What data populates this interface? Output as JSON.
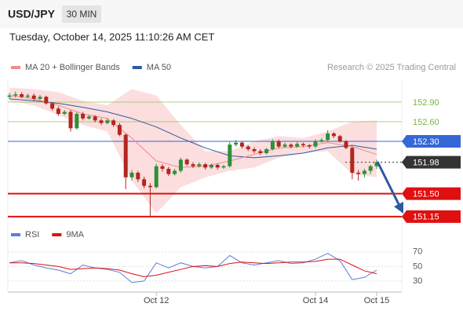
{
  "header": {
    "symbol": "USD/JPY",
    "interval": "30 MIN",
    "timestamp": "Tuesday, October 14, 2025 11:10:26 AM CET"
  },
  "chart_data": [
    {
      "type": "candlestick",
      "legend": [
        {
          "name": "MA 20 + Bollinger Bands",
          "color": "#f28a8a"
        },
        {
          "name": "MA 50",
          "color": "#2b5aa8"
        }
      ],
      "credit": "Research © 2025 Trading Central",
      "ylim": [
        151.04,
        153.26
      ],
      "up_color": "#2f8f3a",
      "down_color": "#b3261e",
      "xticks": [
        {
          "value": 24,
          "label": "Oct 12"
        },
        {
          "value": 50,
          "label": "Oct 14"
        },
        {
          "value": 60,
          "label": "Oct 15"
        }
      ],
      "open": [
        152.98,
        153.0,
        153.02,
        152.98,
        153.0,
        152.95,
        152.98,
        152.88,
        152.8,
        152.72,
        152.75,
        152.5,
        152.72,
        152.65,
        152.68,
        152.62,
        152.58,
        152.62,
        152.55,
        152.4,
        151.75,
        151.82,
        151.72,
        151.62,
        151.6,
        151.92,
        151.88,
        151.8,
        151.85,
        152.02,
        151.95,
        151.92,
        151.95,
        151.9,
        151.94,
        151.9,
        151.92,
        152.25,
        152.28,
        152.22,
        152.18,
        152.15,
        152.12,
        152.18,
        152.3,
        152.22,
        152.25,
        152.22,
        152.26,
        152.24,
        152.22,
        152.3,
        152.32,
        152.42,
        152.38,
        152.3,
        152.2,
        151.82,
        151.8,
        151.85,
        151.92
      ],
      "high": [
        153.04,
        153.06,
        153.05,
        153.03,
        153.03,
        153.01,
        153.0,
        152.9,
        152.83,
        152.78,
        152.78,
        152.75,
        152.75,
        152.7,
        152.7,
        152.65,
        152.65,
        152.64,
        152.58,
        152.42,
        151.86,
        151.85,
        151.76,
        151.66,
        151.96,
        151.95,
        151.91,
        151.88,
        152.05,
        152.04,
        151.98,
        151.98,
        151.97,
        151.96,
        151.96,
        151.94,
        152.29,
        152.32,
        152.3,
        152.24,
        152.21,
        152.18,
        152.2,
        152.33,
        152.33,
        152.28,
        152.27,
        152.29,
        152.28,
        152.26,
        152.33,
        152.35,
        152.47,
        152.44,
        152.4,
        152.32,
        152.22,
        151.86,
        151.88,
        151.94,
        152.02
      ],
      "low": [
        152.95,
        152.97,
        152.96,
        152.96,
        152.92,
        152.93,
        152.86,
        152.77,
        152.69,
        152.7,
        152.45,
        152.48,
        152.62,
        152.63,
        152.59,
        152.55,
        152.56,
        152.52,
        152.38,
        151.57,
        151.7,
        151.68,
        151.58,
        151.15,
        151.58,
        151.84,
        151.77,
        151.78,
        151.82,
        151.92,
        151.89,
        151.9,
        151.87,
        151.88,
        151.87,
        151.88,
        151.9,
        152.22,
        152.19,
        152.15,
        152.12,
        152.09,
        152.1,
        152.16,
        152.19,
        152.2,
        152.19,
        152.2,
        152.21,
        152.19,
        152.2,
        152.28,
        152.3,
        152.35,
        152.28,
        152.18,
        151.72,
        151.7,
        151.75,
        151.8,
        151.88
      ],
      "close": [
        153.0,
        153.02,
        152.98,
        153.0,
        152.95,
        152.98,
        152.88,
        152.8,
        152.72,
        152.75,
        152.5,
        152.72,
        152.65,
        152.68,
        152.62,
        152.58,
        152.62,
        152.55,
        152.4,
        151.75,
        151.82,
        151.72,
        151.62,
        151.6,
        151.92,
        151.88,
        151.8,
        151.85,
        152.02,
        151.95,
        151.92,
        151.95,
        151.9,
        151.94,
        151.9,
        151.92,
        152.25,
        152.28,
        152.22,
        152.18,
        152.15,
        152.12,
        152.18,
        152.3,
        152.22,
        152.25,
        152.22,
        152.26,
        152.24,
        152.22,
        152.3,
        152.32,
        152.42,
        152.38,
        152.3,
        152.2,
        151.82,
        151.8,
        151.85,
        151.92,
        151.98
      ],
      "overlays": {
        "x": [
          0,
          4,
          8,
          12,
          16,
          20,
          24,
          28,
          32,
          36,
          40,
          44,
          48,
          52,
          56,
          60
        ],
        "bb_upper": [
          153.12,
          153.1,
          153.05,
          152.92,
          152.85,
          153.1,
          153.0,
          152.55,
          152.15,
          152.15,
          152.3,
          152.38,
          152.35,
          152.45,
          152.6,
          152.62
        ],
        "bb_lower": [
          152.92,
          152.85,
          152.7,
          152.55,
          152.45,
          151.7,
          151.2,
          151.6,
          151.75,
          151.85,
          151.9,
          152.05,
          152.12,
          152.15,
          151.8,
          151.75
        ],
        "ma20": [
          153.0,
          152.95,
          152.85,
          152.72,
          152.65,
          152.35,
          152.0,
          151.9,
          151.92,
          152.0,
          152.1,
          152.2,
          152.22,
          152.28,
          152.22,
          152.1
        ],
        "ma50": [
          152.95,
          152.92,
          152.88,
          152.82,
          152.75,
          152.65,
          152.52,
          152.35,
          152.2,
          152.08,
          152.05,
          152.08,
          152.12,
          152.2,
          152.24,
          152.18
        ]
      },
      "levels": [
        {
          "value": 152.9,
          "label": "152.90",
          "color": "#8bc34a",
          "box": false
        },
        {
          "value": 152.6,
          "label": "152.60",
          "color": "#8bc34a",
          "box": false
        },
        {
          "value": 152.3,
          "label": "152.30",
          "color": "#3567d6",
          "box": true
        },
        {
          "value": 151.98,
          "label": "151.98",
          "color": "#333333",
          "box": true,
          "dashed": true
        },
        {
          "value": 151.5,
          "label": "151.50",
          "color": "#e01010",
          "box": true
        },
        {
          "value": 151.15,
          "label": "151.15",
          "color": "#e01010",
          "box": true
        }
      ]
    },
    {
      "type": "line",
      "ylim": [
        17,
        87
      ],
      "yticks": [
        70,
        50,
        30
      ],
      "x": [
        0,
        2,
        4,
        6,
        8,
        10,
        12,
        14,
        16,
        18,
        20,
        22,
        24,
        26,
        28,
        30,
        32,
        34,
        36,
        38,
        40,
        42,
        44,
        46,
        48,
        50,
        52,
        54,
        56,
        58,
        60
      ],
      "series": [
        {
          "name": "RSI",
          "color": "#5b7fd6",
          "values": [
            55,
            58,
            52,
            48,
            45,
            40,
            52,
            48,
            46,
            42,
            28,
            30,
            55,
            48,
            55,
            50,
            48,
            50,
            65,
            55,
            52,
            55,
            58,
            54,
            55,
            60,
            68,
            58,
            32,
            35,
            45
          ]
        },
        {
          "name": "9MA",
          "color": "#e01010",
          "values": [
            55,
            55,
            54,
            52,
            50,
            46,
            47,
            48,
            47,
            45,
            40,
            36,
            38,
            42,
            46,
            50,
            51,
            50,
            54,
            56,
            55,
            54,
            55,
            56,
            56,
            57,
            60,
            60,
            52,
            44,
            40
          ]
        }
      ]
    }
  ]
}
